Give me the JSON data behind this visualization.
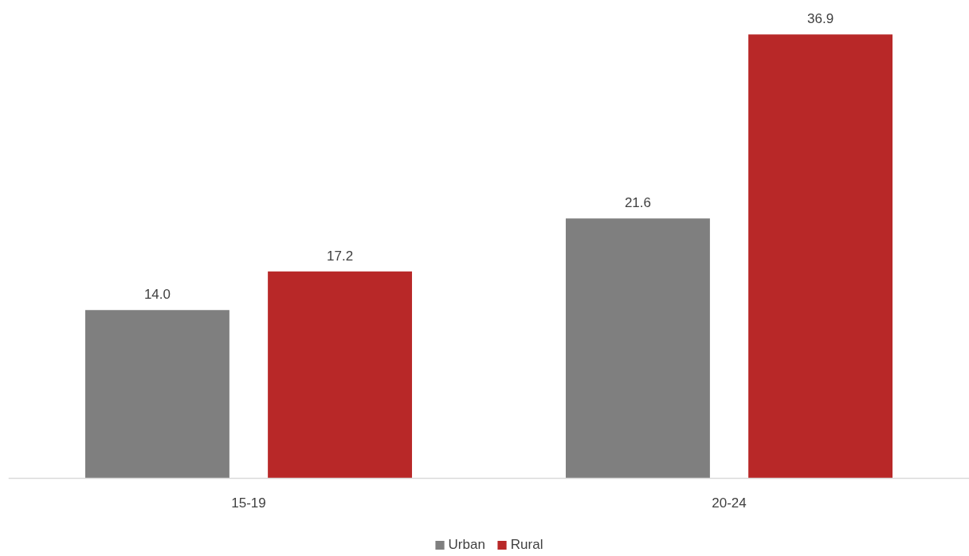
{
  "chart_data": {
    "type": "bar",
    "categories": [
      "15-19",
      "20-24"
    ],
    "series": [
      {
        "name": "Urban",
        "color": "#7f7f7f",
        "values": [
          14.0,
          21.6
        ],
        "value_labels": [
          "14.0",
          "21.6"
        ]
      },
      {
        "name": "Rural",
        "color": "#b82828",
        "values": [
          17.2,
          36.9
        ],
        "value_labels": [
          "17.2",
          "36.9"
        ]
      }
    ],
    "grid": false,
    "legend": "bottom",
    "tick_labels": "x"
  }
}
